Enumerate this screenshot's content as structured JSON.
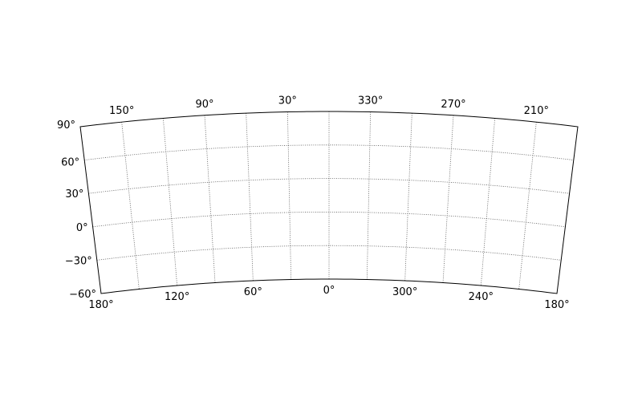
{
  "chart_data": {
    "type": "map",
    "projection": "curved-rectangle",
    "grid": true,
    "lon_range": [
      0,
      360
    ],
    "lat_range": [
      -60,
      90
    ],
    "top_lon_ticks": [
      "150°",
      "90°",
      "30°",
      "330°",
      "270°",
      "210°"
    ],
    "bottom_lon_ticks": [
      "180°",
      "120°",
      "60°",
      "0°",
      "300°",
      "240°",
      "180°"
    ],
    "lat_ticks": [
      "90°",
      "60°",
      "30°",
      "0°",
      "−30°",
      "−60°"
    ],
    "colors": {
      "frame": "#000000",
      "grid": "#555555",
      "background": "#ffffff"
    }
  }
}
